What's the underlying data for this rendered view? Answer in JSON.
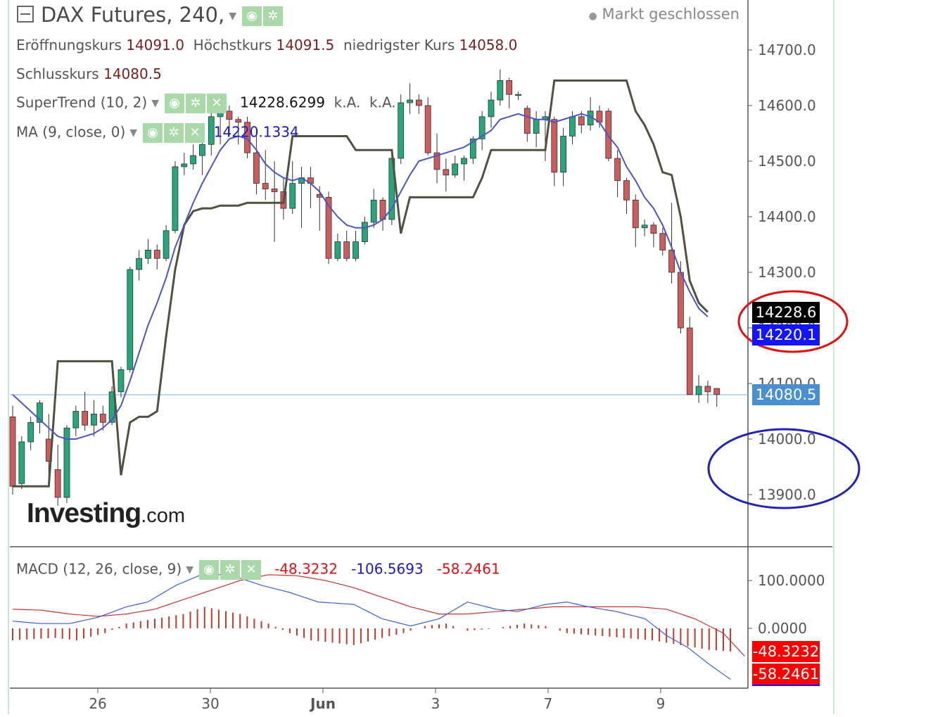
{
  "header": {
    "title": "DAX Futures, 240,",
    "market_status": "Markt geschlossen"
  },
  "ohlc": {
    "open_label": "Eröffnungskurs",
    "open": "14091.0",
    "high_label": "Höchstkurs",
    "high": "14091.5",
    "low_label": "niedrigster Kurs",
    "low": "14058.0",
    "close_label": "Schlusskurs",
    "close": "14080.5"
  },
  "indicators": {
    "supertrend_label": "SuperTrend (10, 2)",
    "supertrend_value": "14228.6299",
    "supertrend_na1": "k.A.",
    "supertrend_na2": "k.A.",
    "ma_label": "MA (9, close, 0)",
    "ma_value": "14220.1334",
    "macd_label": "MACD (12, 26, close, 9)",
    "macd_hist_value": "-48.3232",
    "macd_line_value": "-106.5693",
    "macd_signal_value": "-58.2461"
  },
  "price_labels": {
    "supertrend": "14228.6",
    "ma": "14220.1",
    "last": "14080.5",
    "macd_hist": "-48.3232",
    "macd_signal": "-58.2461"
  },
  "brand": {
    "name": "Investing",
    "suffix": ".com"
  },
  "colors": {
    "up": "#26a67a",
    "down": "#cd5c5c",
    "supertrend": "#4e5240",
    "ma": "#4a55c8",
    "macd_line": "#3d5fd9",
    "macd_signal": "#cc3333",
    "macd_hist": "#c0392b",
    "label_black": "#000000",
    "label_blue": "#1414ff",
    "label_last": "#4a8fd0",
    "label_red": "#ff0000",
    "highlight_red": "#e01010",
    "highlight_blue": "#2323b8"
  },
  "chart_data": [
    {
      "type": "candlestick",
      "title": "DAX Futures, 240,",
      "x_ticks": [
        "26",
        "30",
        "Jun",
        "3",
        "7",
        "9"
      ],
      "y_ticks": [
        "13900.0",
        "14000.0",
        "14100.0",
        "14200.0",
        "14300.0",
        "14400.0",
        "14500.0",
        "14600.0",
        "14700.0"
      ],
      "ylim": [
        13840,
        14770
      ],
      "grid": false,
      "candles_ohlc": [
        [
          14040,
          14060,
          13900,
          13915
        ],
        [
          13920,
          14005,
          13910,
          13995
        ],
        [
          13995,
          14040,
          13980,
          14030
        ],
        [
          14030,
          14070,
          14010,
          14065
        ],
        [
          14000,
          14045,
          13925,
          13960
        ],
        [
          13945,
          13990,
          13880,
          13895
        ],
        [
          13895,
          14025,
          13885,
          14020
        ],
        [
          14020,
          14060,
          14005,
          14050
        ],
        [
          14050,
          14085,
          14015,
          14025
        ],
        [
          14025,
          14070,
          14005,
          14045
        ],
        [
          14045,
          14060,
          14015,
          14030
        ],
        [
          14030,
          14095,
          14025,
          14085
        ],
        [
          14085,
          14130,
          14075,
          14125
        ],
        [
          14125,
          14310,
          14120,
          14305
        ],
        [
          14305,
          14340,
          14285,
          14325
        ],
        [
          14325,
          14360,
          14315,
          14340
        ],
        [
          14340,
          14350,
          14305,
          14325
        ],
        [
          14325,
          14385,
          14320,
          14375
        ],
        [
          14375,
          14500,
          14370,
          14490
        ],
        [
          14490,
          14515,
          14475,
          14495
        ],
        [
          14495,
          14530,
          14485,
          14510
        ],
        [
          14510,
          14545,
          14475,
          14530
        ],
        [
          14530,
          14590,
          14510,
          14580
        ],
        [
          14580,
          14600,
          14530,
          14590
        ],
        [
          14590,
          14600,
          14545,
          14575
        ],
        [
          14575,
          14580,
          14530,
          14570
        ],
        [
          14570,
          14580,
          14505,
          14515
        ],
        [
          14515,
          14560,
          14440,
          14460
        ],
        [
          14460,
          14520,
          14430,
          14450
        ],
        [
          14450,
          14500,
          14355,
          14445
        ],
        [
          14445,
          14470,
          14395,
          14415
        ],
        [
          14415,
          14500,
          14405,
          14460
        ],
        [
          14460,
          14490,
          14380,
          14470
        ],
        [
          14470,
          14490,
          14415,
          14460
        ],
        [
          14440,
          14455,
          14375,
          14435
        ],
        [
          14435,
          14445,
          14315,
          14325
        ],
        [
          14325,
          14370,
          14320,
          14355
        ],
        [
          14355,
          14375,
          14320,
          14325
        ],
        [
          14325,
          14375,
          14320,
          14355
        ],
        [
          14355,
          14400,
          14350,
          14390
        ],
        [
          14390,
          14450,
          14380,
          14430
        ],
        [
          14430,
          14435,
          14375,
          14395
        ],
        [
          14395,
          14510,
          14385,
          14505
        ],
        [
          14505,
          14620,
          14495,
          14605
        ],
        [
          14605,
          14640,
          14585,
          14610
        ],
        [
          14610,
          14620,
          14585,
          14600
        ],
        [
          14600,
          14615,
          14510,
          14515
        ],
        [
          14515,
          14550,
          14460,
          14485
        ],
        [
          14485,
          14505,
          14445,
          14475
        ],
        [
          14475,
          14510,
          14470,
          14495
        ],
        [
          14495,
          14510,
          14465,
          14505
        ],
        [
          14505,
          14545,
          14495,
          14540
        ],
        [
          14540,
          14590,
          14520,
          14580
        ],
        [
          14580,
          14625,
          14560,
          14610
        ],
        [
          14610,
          14665,
          14600,
          14645
        ],
        [
          14645,
          14650,
          14595,
          14620
        ],
        [
          14620,
          14625,
          14610,
          14620
        ],
        [
          14595,
          14600,
          14535,
          14550
        ],
        [
          14550,
          14590,
          14525,
          14575
        ],
        [
          14575,
          14590,
          14500,
          14580
        ],
        [
          14575,
          14580,
          14455,
          14480
        ],
        [
          14480,
          14560,
          14455,
          14545
        ],
        [
          14545,
          14590,
          14530,
          14580
        ],
        [
          14580,
          14590,
          14550,
          14565
        ],
        [
          14565,
          14615,
          14555,
          14590
        ],
        [
          14590,
          14600,
          14560,
          14570
        ],
        [
          14590,
          14595,
          14500,
          14505
        ],
        [
          14505,
          14520,
          14435,
          14465
        ],
        [
          14465,
          14470,
          14405,
          14430
        ],
        [
          14430,
          14440,
          14345,
          14380
        ],
        [
          14380,
          14395,
          14365,
          14385
        ],
        [
          14385,
          14390,
          14345,
          14370
        ],
        [
          14370,
          14380,
          14330,
          14340
        ],
        [
          14340,
          14425,
          14280,
          14300
        ],
        [
          14300,
          14320,
          14190,
          14200
        ],
        [
          14200,
          14220,
          14080,
          14080
        ],
        [
          14080,
          14115,
          14065,
          14095
        ],
        [
          14095,
          14105,
          14065,
          14085
        ],
        [
          14091,
          14091.5,
          14058,
          14080.5
        ]
      ],
      "supertrend": [
        13915,
        13915,
        13915,
        13915,
        13915,
        14140,
        14140,
        14140,
        14140,
        14140,
        14140,
        14140,
        13935,
        14030,
        14040,
        14040,
        14050,
        14185,
        14305,
        14385,
        14410,
        14415,
        14415,
        14420,
        14420,
        14420,
        14425,
        14425,
        14425,
        14425,
        14425,
        14545,
        14545,
        14545,
        14545,
        14545,
        14545,
        14545,
        14520,
        14520,
        14520,
        14520,
        14520,
        14370,
        14435,
        14435,
        14435,
        14435,
        14435,
        14435,
        14435,
        14435,
        14470,
        14520,
        14520,
        14520,
        14520,
        14520,
        14520,
        14520,
        14645,
        14645,
        14645,
        14645,
        14645,
        14645,
        14645,
        14645,
        14645,
        14590,
        14565,
        14530,
        14480,
        14475,
        14400,
        14285,
        14245,
        14228.6
      ],
      "ma": [
        14080,
        14065,
        14050,
        14035,
        14020,
        14005,
        14000,
        14000,
        14005,
        14010,
        14020,
        14035,
        14060,
        14105,
        14155,
        14205,
        14245,
        14290,
        14345,
        14385,
        14425,
        14460,
        14490,
        14520,
        14540,
        14545,
        14540,
        14520,
        14495,
        14480,
        14470,
        14465,
        14470,
        14460,
        14445,
        14420,
        14400,
        14385,
        14380,
        14380,
        14385,
        14395,
        14415,
        14445,
        14475,
        14500,
        14505,
        14510,
        14515,
        14520,
        14525,
        14535,
        14545,
        14555,
        14575,
        14580,
        14585,
        14580,
        14575,
        14575,
        14570,
        14575,
        14580,
        14585,
        14580,
        14570,
        14545,
        14525,
        14490,
        14465,
        14435,
        14415,
        14385,
        14345,
        14300,
        14265,
        14235,
        14220.1
      ]
    },
    {
      "type": "macd",
      "title": "MACD (12, 26, close, 9)",
      "y_ticks": [
        "0.0000",
        "100.0000"
      ],
      "ylim": [
        -125,
        150
      ],
      "macd_line_anchors": [
        [
          0,
          15
        ],
        [
          4,
          10
        ],
        [
          8,
          10
        ],
        [
          12,
          23
        ],
        [
          16,
          45
        ],
        [
          19,
          55
        ],
        [
          23,
          90
        ],
        [
          27,
          115
        ],
        [
          31,
          110
        ],
        [
          35,
          90
        ],
        [
          39,
          75
        ],
        [
          43,
          55
        ],
        [
          48,
          50
        ],
        [
          52,
          20
        ],
        [
          56,
          5
        ],
        [
          60,
          20
        ],
        [
          64,
          55
        ],
        [
          68,
          40
        ],
        [
          71,
          35
        ],
        [
          75,
          50
        ],
        [
          78,
          55
        ],
        [
          81,
          45
        ],
        [
          85,
          35
        ],
        [
          89,
          20
        ],
        [
          92,
          -15
        ],
        [
          95,
          -40
        ],
        [
          98,
          -75
        ],
        [
          101,
          -106.5693
        ]
      ],
      "signal_anchors": [
        [
          0,
          40
        ],
        [
          4,
          38
        ],
        [
          8,
          30
        ],
        [
          12,
          25
        ],
        [
          16,
          30
        ],
        [
          20,
          40
        ],
        [
          24,
          60
        ],
        [
          28,
          80
        ],
        [
          32,
          100
        ],
        [
          36,
          112
        ],
        [
          40,
          110
        ],
        [
          44,
          100
        ],
        [
          48,
          85
        ],
        [
          52,
          65
        ],
        [
          56,
          45
        ],
        [
          60,
          30
        ],
        [
          64,
          30
        ],
        [
          68,
          35
        ],
        [
          72,
          40
        ],
        [
          76,
          45
        ],
        [
          80,
          45
        ],
        [
          84,
          45
        ],
        [
          88,
          45
        ],
        [
          92,
          40
        ],
        [
          96,
          20
        ],
        [
          100,
          -10
        ],
        [
          103,
          -58.2461
        ]
      ],
      "histogram_anchors": [
        [
          0,
          -25
        ],
        [
          6,
          -20
        ],
        [
          9,
          -25
        ],
        [
          13,
          -10
        ],
        [
          16,
          10
        ],
        [
          20,
          20
        ],
        [
          24,
          30
        ],
        [
          27,
          45
        ],
        [
          32,
          30
        ],
        [
          36,
          10
        ],
        [
          39,
          -10
        ],
        [
          42,
          -25
        ],
        [
          48,
          -35
        ],
        [
          52,
          -20
        ],
        [
          55,
          -10
        ],
        [
          58,
          5
        ],
        [
          61,
          10
        ],
        [
          64,
          -5
        ],
        [
          68,
          0
        ],
        [
          72,
          10
        ],
        [
          75,
          5
        ],
        [
          78,
          -10
        ],
        [
          82,
          -15
        ],
        [
          86,
          -20
        ],
        [
          90,
          -25
        ],
        [
          94,
          -35
        ],
        [
          98,
          -45
        ],
        [
          101,
          -48.3232
        ]
      ]
    }
  ]
}
